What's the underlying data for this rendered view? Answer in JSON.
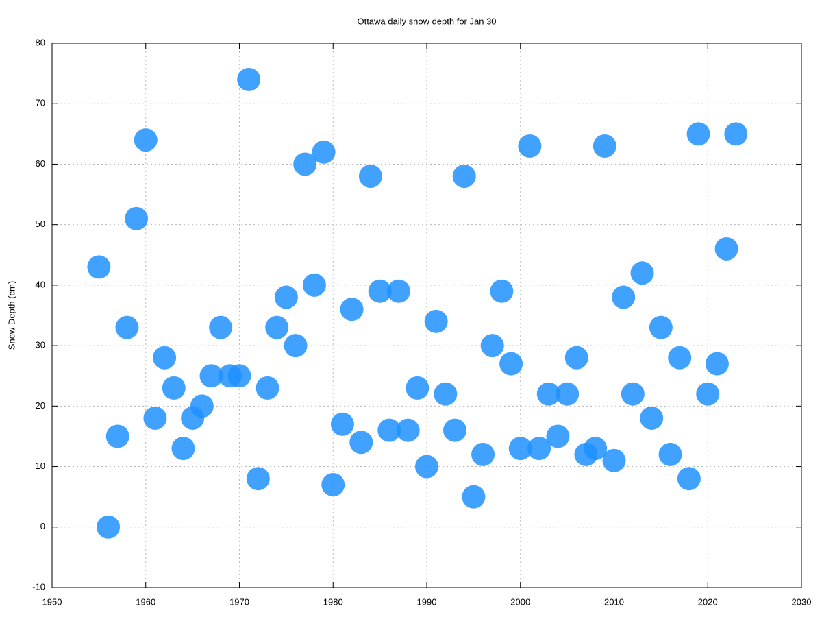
{
  "chart_data": {
    "type": "scatter",
    "title": "Ottawa daily snow depth for Jan 30",
    "y_label": "Snow Depth (cm)",
    "x": [
      1955,
      1956,
      1957,
      1958,
      1959,
      1960,
      1961,
      1962,
      1963,
      1964,
      1965,
      1966,
      1967,
      1968,
      1969,
      1970,
      1971,
      1972,
      1973,
      1974,
      1975,
      1976,
      1977,
      1978,
      1979,
      1980,
      1981,
      1982,
      1983,
      1984,
      1985,
      1986,
      1987,
      1988,
      1989,
      1990,
      1991,
      1992,
      1993,
      1994,
      1995,
      1996,
      1997,
      1998,
      1999,
      2000,
      2001,
      2002,
      2003,
      2004,
      2005,
      2006,
      2007,
      2008,
      2009,
      2010,
      2011,
      2012,
      2013,
      2014,
      2015,
      2016,
      2017,
      2018,
      2019,
      2020,
      2021,
      2022,
      2023
    ],
    "values": [
      43,
      0,
      15,
      33,
      51,
      64,
      18,
      28,
      23,
      13,
      18,
      20,
      25,
      33,
      25,
      25,
      74,
      8,
      23,
      33,
      38,
      30,
      60,
      40,
      62,
      7,
      17,
      36,
      14,
      58,
      39,
      16,
      39,
      16,
      23,
      10,
      34,
      22,
      16,
      58,
      5,
      12,
      30,
      39,
      27,
      13,
      63,
      13,
      22,
      15,
      22,
      28,
      12,
      13,
      63,
      11,
      38,
      22,
      42,
      18,
      33,
      12,
      28,
      8,
      65,
      22,
      27,
      46,
      65
    ],
    "color": "#1e90ff",
    "xlim": [
      1950,
      2030
    ],
    "xticks": [
      1950,
      1960,
      1970,
      1980,
      1990,
      2000,
      2010,
      2020,
      2030
    ],
    "ylim": [
      -10,
      80
    ],
    "yticks": [
      -10,
      0,
      10,
      20,
      30,
      40,
      50,
      60,
      70,
      80
    ],
    "grid": true
  }
}
